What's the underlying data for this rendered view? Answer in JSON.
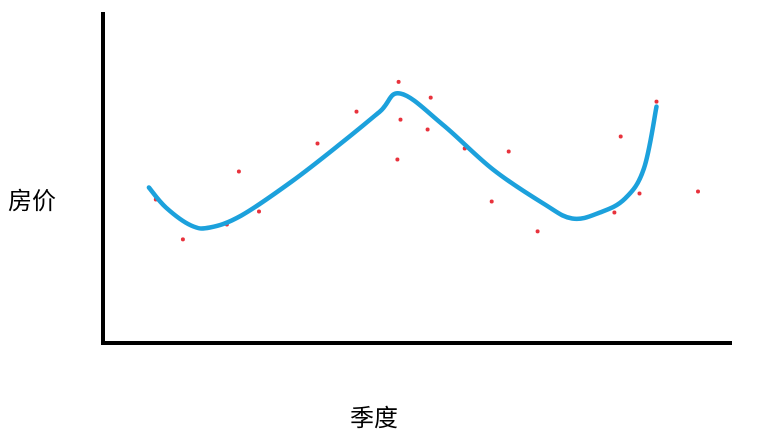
{
  "chart_data": {
    "type": "scatter",
    "title": "",
    "xlabel": "季度",
    "ylabel": "房价",
    "grid": false,
    "legend": "none",
    "axis_color": "#000000",
    "point_color": "#e8323c",
    "curve_color": "#1ca1dc",
    "xlim": [
      0,
      100
    ],
    "ylim": [
      0,
      100
    ],
    "points": [
      {
        "x": 8.4,
        "y": 43.7
      },
      {
        "x": 12.7,
        "y": 31.7
      },
      {
        "x": 19.7,
        "y": 36.2
      },
      {
        "x": 21.6,
        "y": 52.1
      },
      {
        "x": 24.8,
        "y": 40.1
      },
      {
        "x": 31.7,
        "y": 51.5
      },
      {
        "x": 34.1,
        "y": 60.5
      },
      {
        "x": 40.3,
        "y": 70.1
      },
      {
        "x": 46.8,
        "y": 55.7
      },
      {
        "x": 47.0,
        "y": 79.0
      },
      {
        "x": 47.3,
        "y": 67.7
      },
      {
        "x": 51.6,
        "y": 64.7
      },
      {
        "x": 52.1,
        "y": 74.3
      },
      {
        "x": 57.5,
        "y": 59.0
      },
      {
        "x": 61.8,
        "y": 43.1
      },
      {
        "x": 64.5,
        "y": 58.1
      },
      {
        "x": 69.1,
        "y": 34.1
      },
      {
        "x": 81.3,
        "y": 39.8
      },
      {
        "x": 82.3,
        "y": 62.6
      },
      {
        "x": 85.3,
        "y": 45.5
      },
      {
        "x": 88.0,
        "y": 73.1
      },
      {
        "x": 94.6,
        "y": 46.1
      }
    ],
    "curve": [
      {
        "x": 7.3,
        "y": 47.3
      },
      {
        "x": 10.0,
        "y": 41.3
      },
      {
        "x": 14.0,
        "y": 35.9
      },
      {
        "x": 17.0,
        "y": 35.3
      },
      {
        "x": 22.0,
        "y": 38.9
      },
      {
        "x": 30.0,
        "y": 49.1
      },
      {
        "x": 38.0,
        "y": 60.8
      },
      {
        "x": 44.0,
        "y": 70.1
      },
      {
        "x": 47.3,
        "y": 75.5
      },
      {
        "x": 54.0,
        "y": 66.2
      },
      {
        "x": 62.0,
        "y": 52.7
      },
      {
        "x": 70.0,
        "y": 42.5
      },
      {
        "x": 74.6,
        "y": 38.0
      },
      {
        "x": 79.0,
        "y": 39.8
      },
      {
        "x": 83.0,
        "y": 44.0
      },
      {
        "x": 86.0,
        "y": 53.0
      },
      {
        "x": 88.0,
        "y": 71.6
      }
    ]
  }
}
